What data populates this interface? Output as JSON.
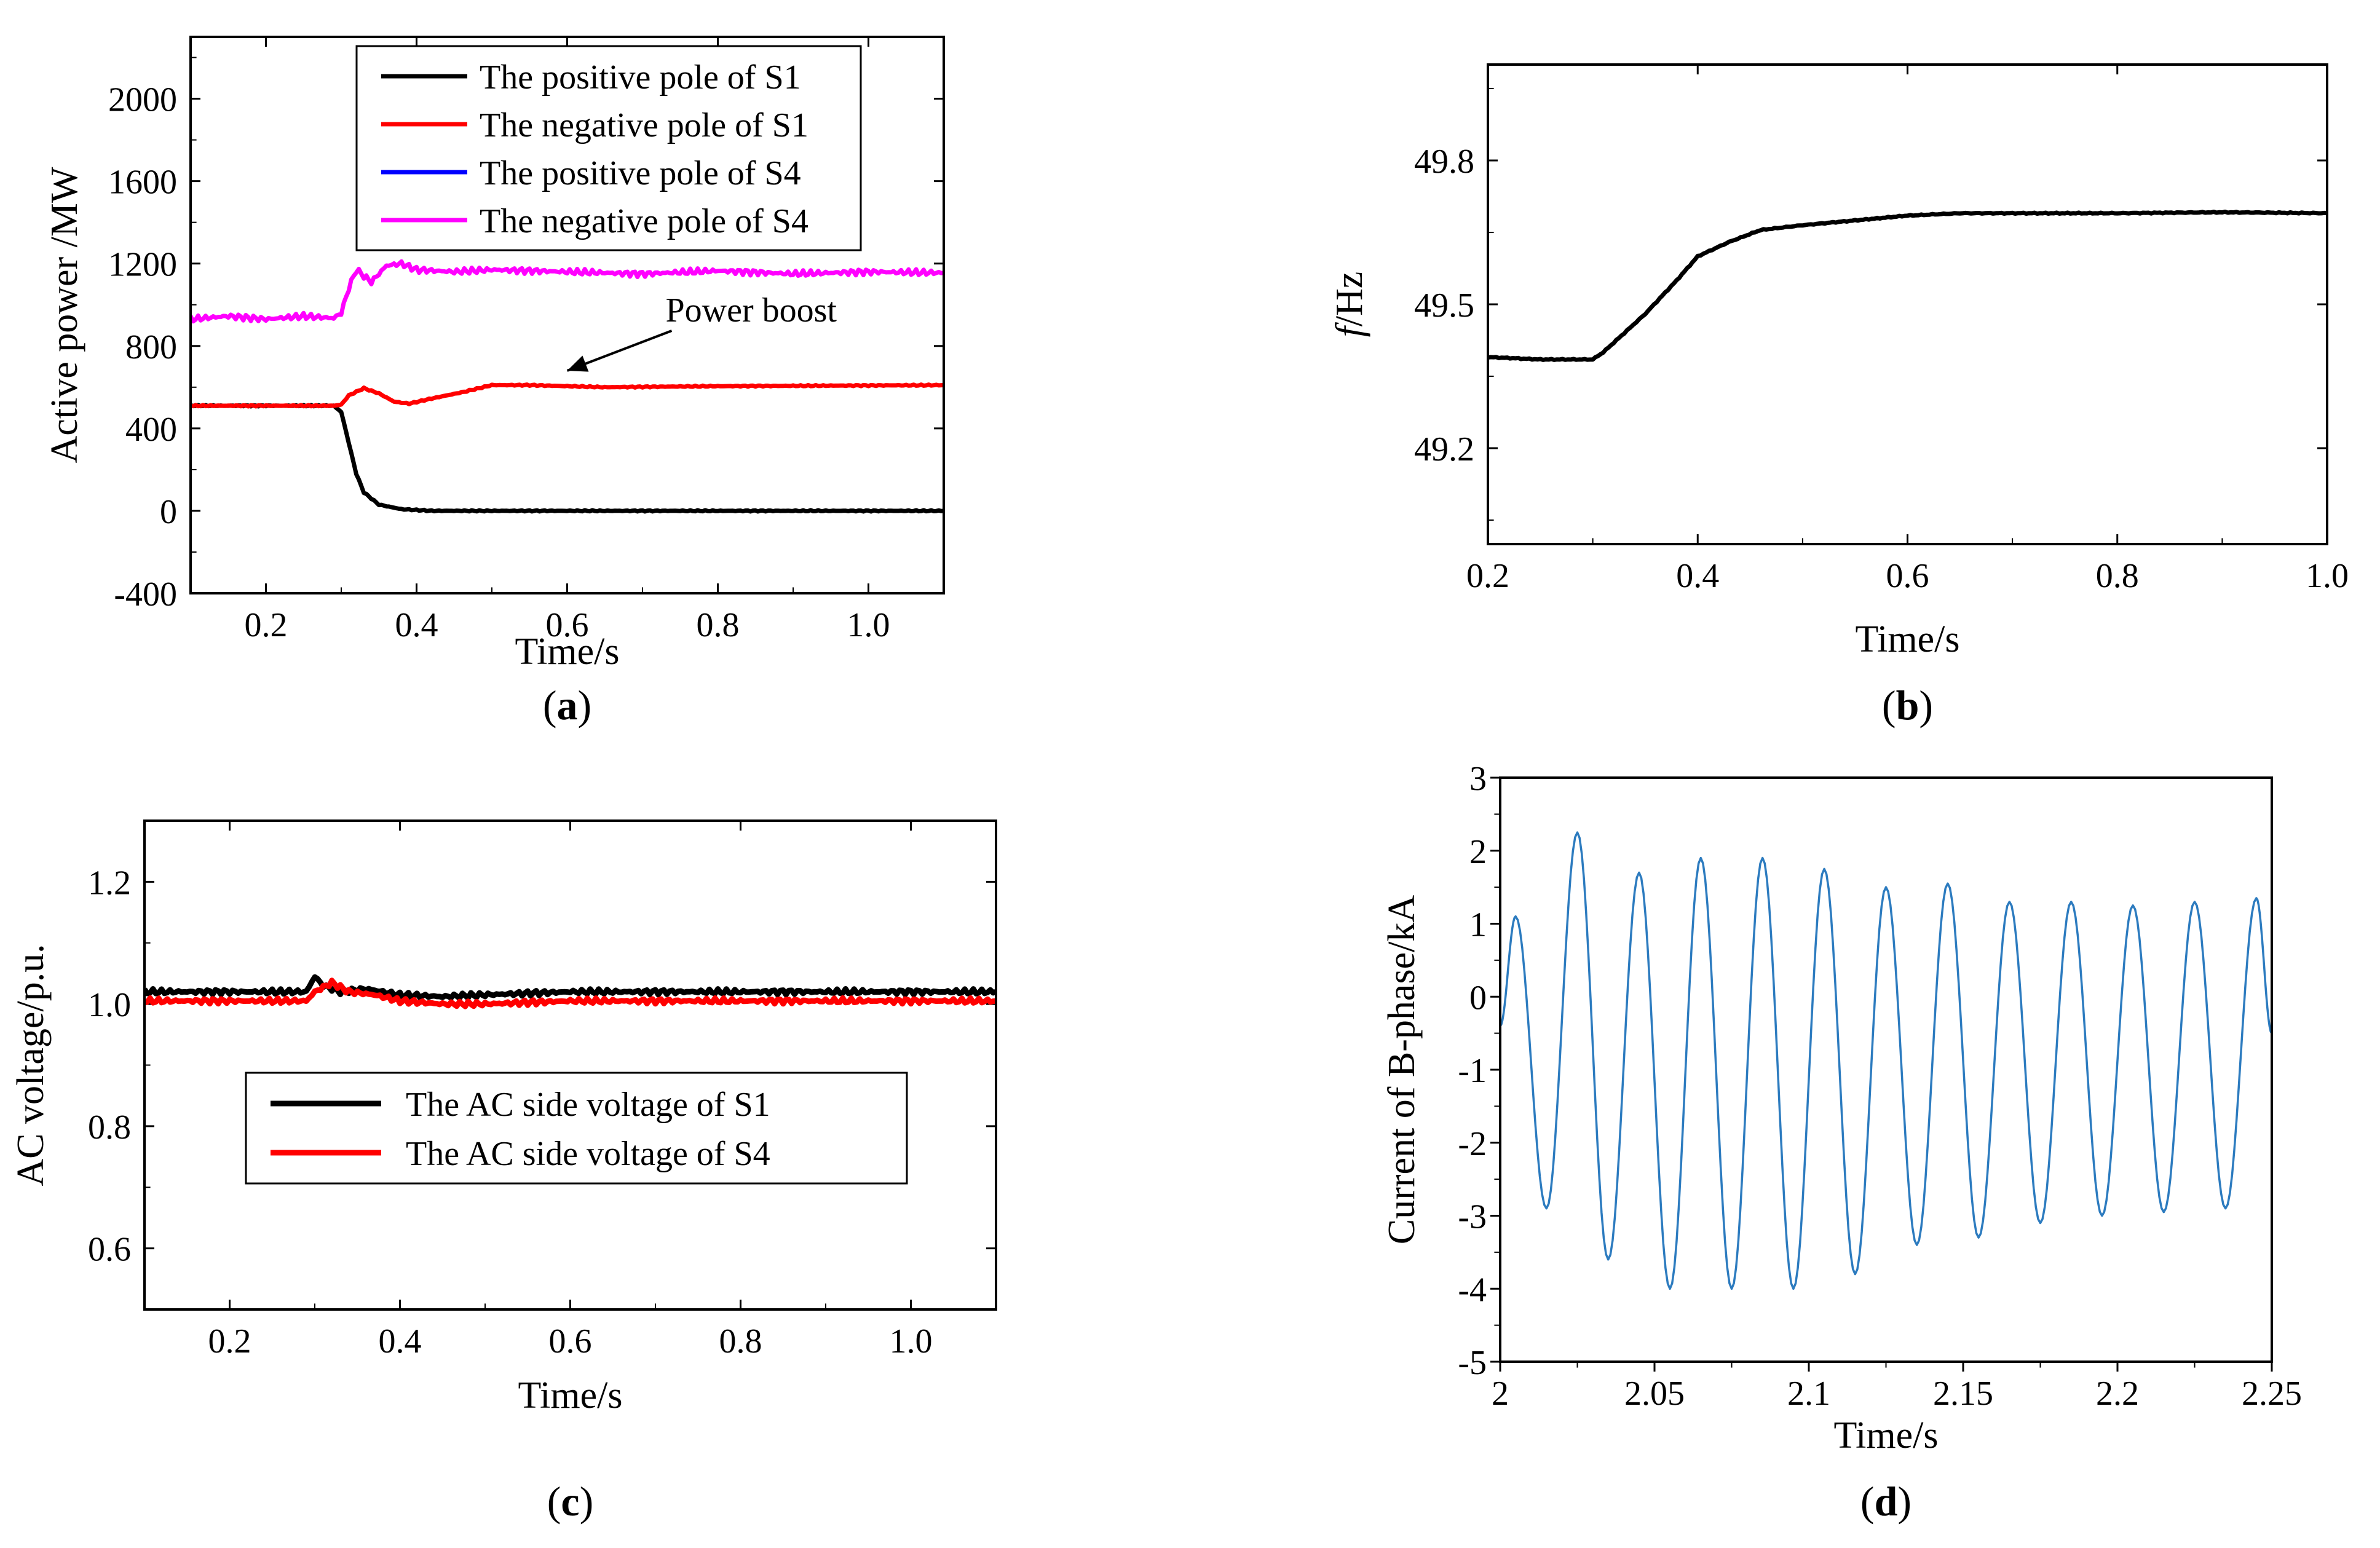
{
  "chart_data": [
    {
      "panel": "(a)",
      "panel_letter": "a",
      "type": "line",
      "xlabel": "Time/s",
      "ylabel": "Active power /MW",
      "xlim": [
        0.1,
        1.1
      ],
      "ylim": [
        -400,
        2300
      ],
      "xticks": [
        "0.2",
        "0.4",
        "0.6",
        "0.8",
        "1.0"
      ],
      "yticks": [
        "-400",
        "0",
        "400",
        "800",
        "1200",
        "1600",
        "2000"
      ],
      "legend_position": "top-right",
      "series": [
        {
          "name": "The positive pole of S1",
          "color": "#000000",
          "points": [
            [
              0.1,
              510
            ],
            [
              0.29,
              510
            ],
            [
              0.3,
              480
            ],
            [
              0.31,
              330
            ],
            [
              0.32,
              180
            ],
            [
              0.33,
              90
            ],
            [
              0.35,
              30
            ],
            [
              0.38,
              8
            ],
            [
              0.42,
              0
            ],
            [
              1.1,
              0
            ]
          ]
        },
        {
          "name": "The negative pole of S1",
          "color": "#ff0000",
          "points": [
            [
              0.1,
              510
            ],
            [
              0.29,
              510
            ],
            [
              0.3,
              515
            ],
            [
              0.31,
              560
            ],
            [
              0.33,
              595
            ],
            [
              0.35,
              570
            ],
            [
              0.37,
              530
            ],
            [
              0.39,
              520
            ],
            [
              0.42,
              545
            ],
            [
              0.46,
              575
            ],
            [
              0.5,
              610
            ],
            [
              0.55,
              610
            ],
            [
              0.65,
              600
            ],
            [
              0.8,
              605
            ],
            [
              1.1,
              610
            ]
          ]
        },
        {
          "name": "The positive pole of S4",
          "color": "#0000ff",
          "points": []
        },
        {
          "name": "The negative pole of S4",
          "color": "#ff00ff",
          "points": [
            [
              0.1,
              930
            ],
            [
              0.15,
              945
            ],
            [
              0.2,
              930
            ],
            [
              0.25,
              945
            ],
            [
              0.29,
              935
            ],
            [
              0.3,
              960
            ],
            [
              0.31,
              1080
            ],
            [
              0.32,
              1170
            ],
            [
              0.34,
              1110
            ],
            [
              0.36,
              1190
            ],
            [
              0.38,
              1200
            ],
            [
              0.4,
              1170
            ],
            [
              0.45,
              1160
            ],
            [
              0.5,
              1170
            ],
            [
              0.6,
              1160
            ],
            [
              0.7,
              1150
            ],
            [
              0.8,
              1165
            ],
            [
              0.9,
              1150
            ],
            [
              1.0,
              1160
            ],
            [
              1.1,
              1155
            ]
          ]
        }
      ],
      "annotation": {
        "text": "Power boost",
        "at": [
          0.6,
          680
        ]
      }
    },
    {
      "panel": "(b)",
      "panel_letter": "b",
      "type": "line",
      "xlabel": "Time/s",
      "ylabel_italic": "f",
      "ylabel": "/Hz",
      "xlim": [
        0.2,
        1.0
      ],
      "ylim": [
        49.0,
        50.0
      ],
      "xticks": [
        "0.2",
        "0.4",
        "0.6",
        "0.8",
        "1.0"
      ],
      "yticks": [
        "49.2",
        "49.5",
        "49.8"
      ],
      "series": [
        {
          "name": "",
          "color": "#000000",
          "points": [
            [
              0.2,
              49.39
            ],
            [
              0.25,
              49.385
            ],
            [
              0.3,
              49.385
            ],
            [
              0.31,
              49.4
            ],
            [
              0.33,
              49.44
            ],
            [
              0.35,
              49.48
            ],
            [
              0.38,
              49.55
            ],
            [
              0.4,
              49.6
            ],
            [
              0.43,
              49.63
            ],
            [
              0.46,
              49.655
            ],
            [
              0.5,
              49.665
            ],
            [
              0.55,
              49.675
            ],
            [
              0.6,
              49.685
            ],
            [
              0.65,
              49.69
            ],
            [
              0.7,
              49.69
            ],
            [
              0.8,
              49.69
            ],
            [
              0.9,
              49.692
            ],
            [
              1.0,
              49.69
            ]
          ]
        }
      ]
    },
    {
      "panel": "(c)",
      "panel_letter": "c",
      "type": "line",
      "xlabel": "Time/s",
      "ylabel": "AC voltage/p.u.",
      "xlim": [
        0.1,
        1.1
      ],
      "ylim": [
        0.5,
        1.3
      ],
      "xticks": [
        "0.2",
        "0.4",
        "0.6",
        "0.8",
        "1.0"
      ],
      "yticks": [
        "0.6",
        "0.8",
        "1.0",
        "1.2"
      ],
      "legend_position": "lower-center",
      "series": [
        {
          "name": "The AC side voltage of S1",
          "color": "#000000",
          "points": [
            [
              0.1,
              1.02
            ],
            [
              0.29,
              1.02
            ],
            [
              0.3,
              1.045
            ],
            [
              0.31,
              1.03
            ],
            [
              0.33,
              1.02
            ],
            [
              0.36,
              1.025
            ],
            [
              0.4,
              1.015
            ],
            [
              0.45,
              1.012
            ],
            [
              0.5,
              1.015
            ],
            [
              0.6,
              1.02
            ],
            [
              0.8,
              1.02
            ],
            [
              1.1,
              1.02
            ]
          ]
        },
        {
          "name": "The AC side voltage of S4",
          "color": "#ff0000",
          "points": [
            [
              0.1,
              1.005
            ],
            [
              0.29,
              1.005
            ],
            [
              0.3,
              1.02
            ],
            [
              0.32,
              1.035
            ],
            [
              0.34,
              1.02
            ],
            [
              0.37,
              1.015
            ],
            [
              0.4,
              1.005
            ],
            [
              0.45,
              1.0
            ],
            [
              0.5,
              1.0
            ],
            [
              0.6,
              1.005
            ],
            [
              0.8,
              1.005
            ],
            [
              1.1,
              1.005
            ]
          ]
        }
      ]
    },
    {
      "panel": "(d)",
      "panel_letter": "d",
      "type": "line",
      "xlabel": "Time/s",
      "ylabel": "Current of B-phase/kA",
      "xlim": [
        2.0,
        2.25
      ],
      "ylim": [
        -5,
        3
      ],
      "xticks": [
        "2",
        "2.05",
        "2.1",
        "2.15",
        "2.2",
        "2.25"
      ],
      "yticks": [
        "-5",
        "-4",
        "-3",
        "-2",
        "-1",
        "0",
        "1",
        "2",
        "3"
      ],
      "series": [
        {
          "name": "",
          "color": "#2c7bbf",
          "frequency_hz": 50,
          "peaks": [
            1.1,
            2.25,
            1.7,
            1.9,
            1.9,
            1.75,
            1.5,
            1.55,
            1.3,
            1.3,
            1.25,
            1.3,
            1.35
          ],
          "troughs": [
            -2.9,
            -3.6,
            -4.0,
            -4.0,
            -4.0,
            -3.8,
            -3.4,
            -3.3,
            -3.1,
            -3.0,
            -2.95,
            -2.9
          ]
        }
      ]
    }
  ]
}
